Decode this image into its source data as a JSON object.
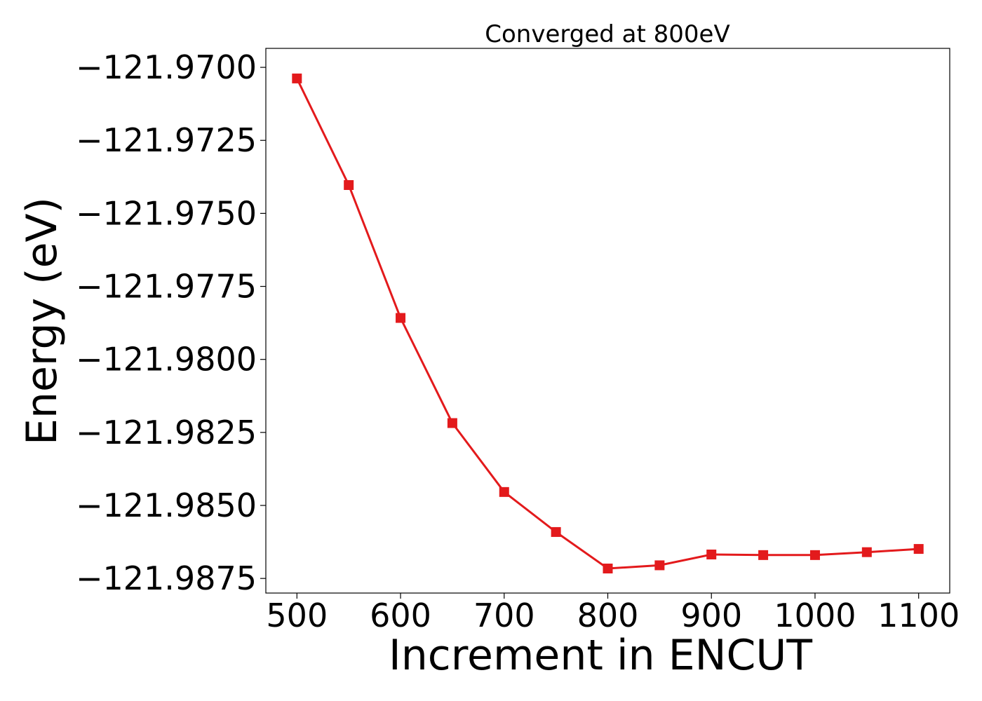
{
  "chart_data": {
    "type": "line",
    "title": "Converged at 800eV",
    "xlabel": "Increment in ENCUT",
    "ylabel": "Energy (eV)",
    "xlim": [
      470,
      1130
    ],
    "ylim": [
      -121.988,
      -121.96935
    ],
    "x_ticks": [
      500,
      600,
      700,
      800,
      900,
      1000,
      1100
    ],
    "x_tick_labels": [
      "500",
      "600",
      "700",
      "800",
      "900",
      "1000",
      "1100"
    ],
    "y_ticks": [
      -121.97,
      -121.9725,
      -121.975,
      -121.9775,
      -121.98,
      -121.9825,
      -121.985,
      -121.9875
    ],
    "y_tick_labels": [
      "−121.9700",
      "−121.9725",
      "−121.9750",
      "−121.9775",
      "−121.9800",
      "−121.9825",
      "−121.9850",
      "−121.9875"
    ],
    "grid": false,
    "legend": "none",
    "series": [
      {
        "color": "#e31a1c",
        "marker": "square",
        "x": [
          500,
          550,
          600,
          650,
          700,
          750,
          800,
          850,
          900,
          950,
          1000,
          1050,
          1100
        ],
        "values": [
          -121.97038,
          -121.97403,
          -121.97858,
          -121.98218,
          -121.98454,
          -121.98591,
          -121.98716,
          -121.98705,
          -121.98668,
          -121.9867,
          -121.9867,
          -121.9866,
          -121.98649
        ]
      }
    ]
  }
}
